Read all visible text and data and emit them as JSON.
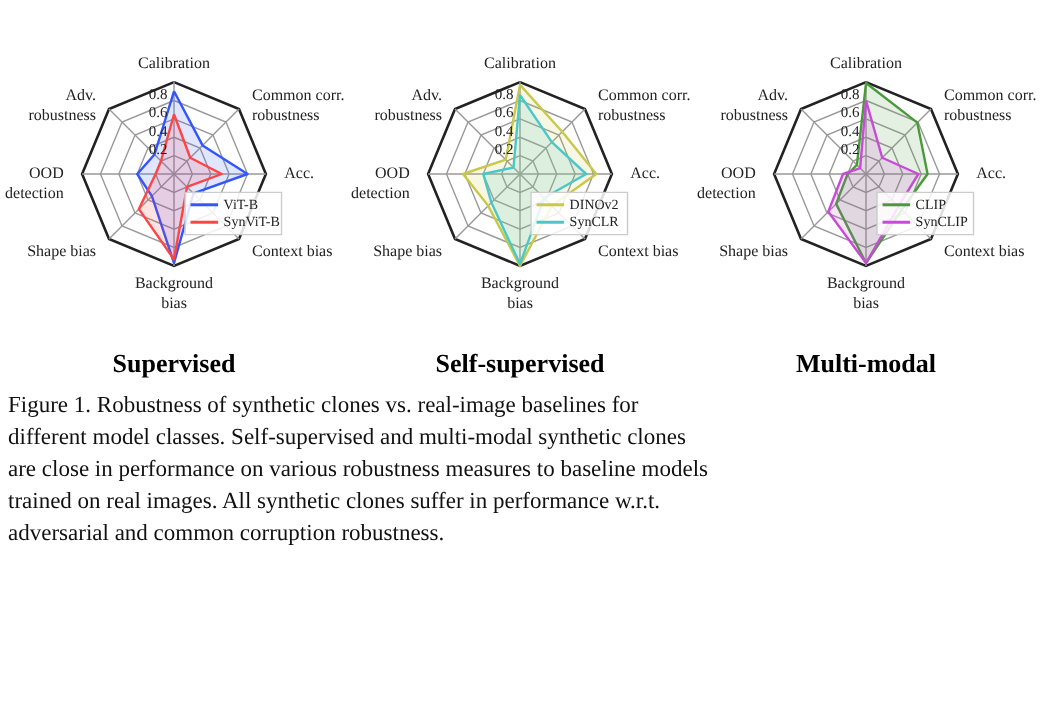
{
  "chart_data": [
    {
      "type": "radar",
      "title": "Supervised",
      "categories": [
        "Calibration",
        "Common corr. robustness",
        "Acc.",
        "Context bias",
        "Background bias",
        "Shape bias",
        "OOD detection",
        "Adv. robustness"
      ],
      "ylim": [
        0,
        1
      ],
      "yticks": [
        0.2,
        0.4,
        0.6,
        0.8
      ],
      "grid": true,
      "legend": "bottom right",
      "series": [
        {
          "name": "ViT-B",
          "color": "#3355ff",
          "values": [
            0.9,
            0.44,
            0.8,
            0.3,
            0.97,
            0.34,
            0.4,
            0.3
          ]
        },
        {
          "name": "SynViT-B",
          "color": "#ff4444",
          "values": [
            0.65,
            0.25,
            0.52,
            0.2,
            0.93,
            0.54,
            0.2,
            0.2
          ]
        }
      ]
    },
    {
      "type": "radar",
      "title": "Self-supervised",
      "categories": [
        "Calibration",
        "Common corr. robustness",
        "Acc.",
        "Context bias",
        "Background bias",
        "Shape bias",
        "OOD detection",
        "Adv. robustness"
      ],
      "ylim": [
        0,
        1
      ],
      "yticks": [
        0.2,
        0.4,
        0.6,
        0.8
      ],
      "grid": true,
      "legend": "bottom right",
      "series": [
        {
          "name": "DINOv2",
          "color": "#c8c84a",
          "values": [
            0.97,
            0.65,
            0.83,
            0.49,
            1.0,
            0.49,
            0.62,
            0.22
          ]
        },
        {
          "name": "SynCLR",
          "color": "#4ac8c8",
          "values": [
            0.86,
            0.49,
            0.72,
            0.37,
            0.98,
            0.44,
            0.4,
            0.1
          ]
        }
      ]
    },
    {
      "type": "radar",
      "title": "Multi-modal",
      "categories": [
        "Calibration",
        "Common corr. robustness",
        "Acc.",
        "Context bias",
        "Background bias",
        "Shape bias",
        "OOD detection",
        "Adv. robustness"
      ],
      "ylim": [
        0,
        1
      ],
      "yticks": [
        0.2,
        0.4,
        0.6,
        0.8
      ],
      "grid": true,
      "legend": "bottom right",
      "series": [
        {
          "name": "CLIP",
          "color": "#4a9a3a",
          "values": [
            0.99,
            0.79,
            0.67,
            0.55,
            0.97,
            0.46,
            0.2,
            0.14
          ]
        },
        {
          "name": "SynCLIP",
          "color": "#c84ad8",
          "values": [
            0.8,
            0.25,
            0.57,
            0.5,
            0.97,
            0.58,
            0.25,
            0.09
          ]
        }
      ]
    },
    {
      "type": "other",
      "annotations": [
        "Figure 1. Robustness of synthetic clones vs. real-image baselines for different model classes. Self-supervised and multi-modal synthetic clones are close in performance on various robustness measures to baseline models trained on real images. All synthetic clones suffer in performance w.r.t. adversarial and common corruption robustness."
      ]
    }
  ]
}
